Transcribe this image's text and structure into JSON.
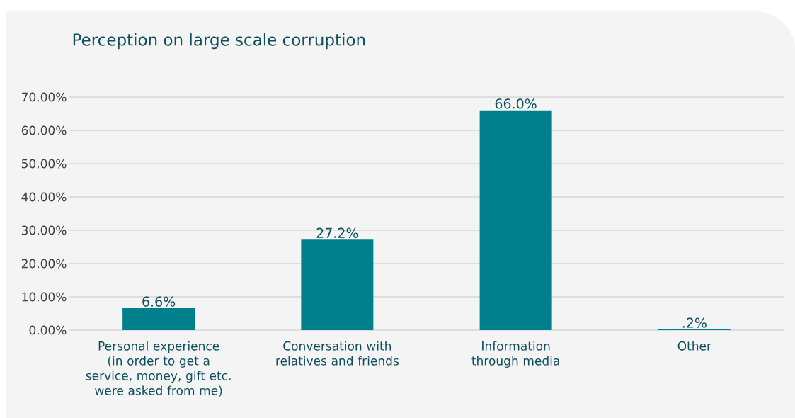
{
  "chart_data": {
    "type": "bar",
    "title": "Perception on large scale corruption",
    "categories": [
      "Personal experience (in order to get a service, money, gift etc. were asked from me)",
      "Conversation with relatives and friends",
      "Information through media",
      "Other"
    ],
    "values": [
      6.6,
      27.2,
      66.0,
      0.2
    ],
    "value_labels": [
      "6.6%",
      "27.2%",
      "66.0%",
      ".2%"
    ],
    "color": "#007f8c",
    "ylim": [
      0,
      70
    ],
    "yticks": [
      {
        "value": 0,
        "label": "0.00%"
      },
      {
        "value": 10,
        "label": "10.00%"
      },
      {
        "value": 20,
        "label": "20.00%"
      },
      {
        "value": 30,
        "label": "30.00%"
      },
      {
        "value": 40,
        "label": "40.00%"
      },
      {
        "value": 50,
        "label": "50.00%"
      },
      {
        "value": 60,
        "label": "60.00%"
      },
      {
        "value": 70,
        "label": "70.00%"
      }
    ],
    "grid": "y"
  }
}
